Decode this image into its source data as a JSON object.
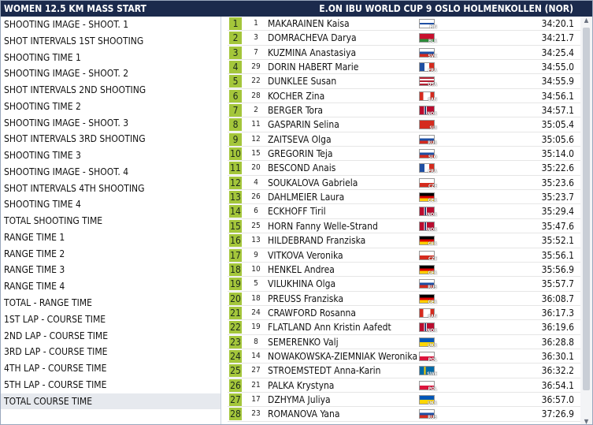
{
  "header": {
    "left_title": "WOMEN 12.5 KM MASS START",
    "right_title": "E.ON IBU WORLD CUP 9 OSLO HOLMENKOLLEN (NOR)"
  },
  "menu": [
    {
      "label": "SHOOTING IMAGE - SHOOT. 1"
    },
    {
      "label": "SHOT INTERVALS 1ST SHOOTING"
    },
    {
      "label": "SHOOTING TIME 1"
    },
    {
      "label": "SHOOTING IMAGE - SHOOT. 2"
    },
    {
      "label": "SHOT INTERVALS 2ND SHOOTING"
    },
    {
      "label": "SHOOTING TIME 2"
    },
    {
      "label": "SHOOTING IMAGE - SHOOT. 3"
    },
    {
      "label": "SHOT INTERVALS 3RD SHOOTING"
    },
    {
      "label": "SHOOTING TIME 3"
    },
    {
      "label": "SHOOTING IMAGE - SHOOT. 4"
    },
    {
      "label": "SHOT INTERVALS 4TH SHOOTING"
    },
    {
      "label": "SHOOTING TIME 4"
    },
    {
      "label": "TOTAL SHOOTING TIME"
    },
    {
      "label": "RANGE TIME 1"
    },
    {
      "label": "RANGE TIME 2"
    },
    {
      "label": "RANGE TIME 3"
    },
    {
      "label": "RANGE TIME 4"
    },
    {
      "label": "TOTAL - RANGE TIME"
    },
    {
      "label": "1ST LAP - COURSE TIME"
    },
    {
      "label": "2ND LAP - COURSE TIME"
    },
    {
      "label": "3RD LAP - COURSE TIME"
    },
    {
      "label": "4TH LAP - COURSE TIME"
    },
    {
      "label": "5TH LAP - COURSE TIME"
    },
    {
      "label": "TOTAL COURSE TIME",
      "selected": true
    }
  ],
  "results": [
    {
      "rank": "1",
      "bib": "1",
      "name": "MAKARAINEN Kaisa",
      "nation": "FIN",
      "time": "34:20.1"
    },
    {
      "rank": "2",
      "bib": "3",
      "name": "DOMRACHEVA Darya",
      "nation": "BLR",
      "time": "34:21.7"
    },
    {
      "rank": "3",
      "bib": "7",
      "name": "KUZMINA Anastasiya",
      "nation": "SVK",
      "time": "34:25.4"
    },
    {
      "rank": "4",
      "bib": "29",
      "name": "DORIN HABERT Marie",
      "nation": "FRA",
      "time": "34:55.0"
    },
    {
      "rank": "5",
      "bib": "22",
      "name": "DUNKLEE Susan",
      "nation": "USA",
      "time": "34:55.9"
    },
    {
      "rank": "6",
      "bib": "28",
      "name": "KOCHER Zina",
      "nation": "CAN",
      "time": "34:56.1"
    },
    {
      "rank": "7",
      "bib": "2",
      "name": "BERGER Tora",
      "nation": "NOR",
      "time": "34:57.1"
    },
    {
      "rank": "8",
      "bib": "11",
      "name": "GASPARIN Selina",
      "nation": "SUI",
      "time": "35:05.4"
    },
    {
      "rank": "9",
      "bib": "12",
      "name": "ZAITSEVA Olga",
      "nation": "RUS",
      "time": "35:05.6"
    },
    {
      "rank": "10",
      "bib": "15",
      "name": "GREGORIN Teja",
      "nation": "SLO",
      "time": "35:14.0"
    },
    {
      "rank": "11",
      "bib": "20",
      "name": "BESCOND Anais",
      "nation": "FRA",
      "time": "35:22.6"
    },
    {
      "rank": "12",
      "bib": "4",
      "name": "SOUKALOVA Gabriela",
      "nation": "CZE",
      "time": "35:23.6"
    },
    {
      "rank": "13",
      "bib": "26",
      "name": "DAHLMEIER Laura",
      "nation": "GER",
      "time": "35:23.7"
    },
    {
      "rank": "14",
      "bib": "6",
      "name": "ECKHOFF Tiril",
      "nation": "NOR",
      "time": "35:29.4"
    },
    {
      "rank": "15",
      "bib": "25",
      "name": "HORN Fanny Welle-Strand",
      "nation": "NOR",
      "time": "35:47.6"
    },
    {
      "rank": "16",
      "bib": "13",
      "name": "HILDEBRAND Franziska",
      "nation": "GER",
      "time": "35:52.1"
    },
    {
      "rank": "17",
      "bib": "9",
      "name": "VITKOVA Veronika",
      "nation": "CZE",
      "time": "35:56.1"
    },
    {
      "rank": "18",
      "bib": "10",
      "name": "HENKEL Andrea",
      "nation": "GER",
      "time": "35:56.9"
    },
    {
      "rank": "19",
      "bib": "5",
      "name": "VILUKHINA Olga",
      "nation": "RUS",
      "time": "35:57.7"
    },
    {
      "rank": "20",
      "bib": "18",
      "name": "PREUSS Franziska",
      "nation": "GER",
      "time": "36:08.7"
    },
    {
      "rank": "21",
      "bib": "24",
      "name": "CRAWFORD Rosanna",
      "nation": "CAN",
      "time": "36:17.3"
    },
    {
      "rank": "22",
      "bib": "19",
      "name": "FLATLAND Ann Kristin Aafedt",
      "nation": "NOR",
      "time": "36:19.6"
    },
    {
      "rank": "23",
      "bib": "8",
      "name": "SEMERENKO Valj",
      "nation": "UKR",
      "time": "36:28.8"
    },
    {
      "rank": "24",
      "bib": "14",
      "name": "NOWAKOWSKA-ZIEMNIAK Weronika",
      "nation": "POL",
      "time": "36:30.1"
    },
    {
      "rank": "25",
      "bib": "27",
      "name": "STROEMSTEDT Anna-Karin",
      "nation": "SWE",
      "time": "36:32.2"
    },
    {
      "rank": "26",
      "bib": "21",
      "name": "PALKA Krystyna",
      "nation": "POL",
      "time": "36:54.1"
    },
    {
      "rank": "27",
      "bib": "17",
      "name": "DZHYMA Juliya",
      "nation": "UKR",
      "time": "36:57.0"
    },
    {
      "rank": "28",
      "bib": "23",
      "name": "ROMANOVA Yana",
      "nation": "RUS",
      "time": "37:26.9"
    }
  ],
  "colors": {
    "title_bar": "#1b2a4c",
    "rank_badge": "#a4c63b",
    "selected_menu": "#e6e9ee"
  }
}
